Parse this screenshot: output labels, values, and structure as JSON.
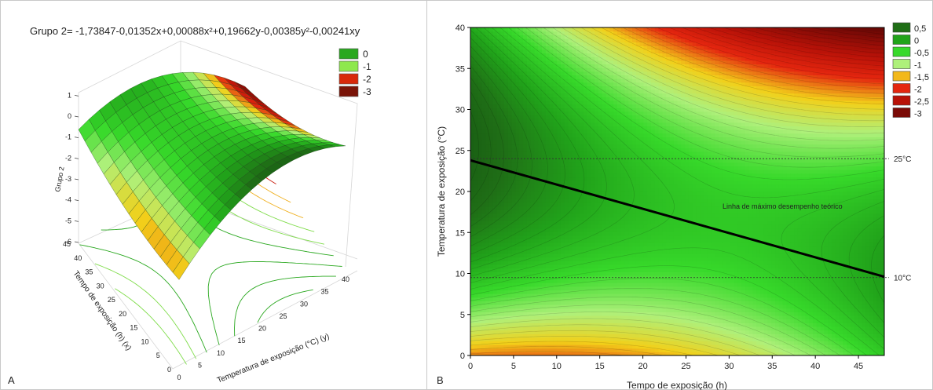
{
  "panel_a": {
    "letter": "A",
    "title": "Grupo 2= -1,73847-0,01352x+0,00088x²+0,19662y-0,00385y²-0,00241xy",
    "z_label": "Grupo 2",
    "x_label": "Tempo de exposição (h) (x)",
    "y_label": "Temperatura de exposição (°C) (y)"
  },
  "panel_b": {
    "letter": "B",
    "xlabel": "Tempo de exposição (h)",
    "ylabel": "Temperatura de exposição (°C)",
    "line_label": "Linha de máximo desempenho teórico",
    "ref_lines": [
      {
        "label": "25°C",
        "y": 24
      },
      {
        "label": "10°C",
        "y": 9.5
      }
    ]
  },
  "chart_data": [
    {
      "type": "surface",
      "equation": {
        "c0": -1.73847,
        "x": -0.01352,
        "x2": 0.00088,
        "y": 0.19662,
        "y2": -0.00385,
        "xy": -0.00241
      },
      "x_range": [
        0,
        45
      ],
      "y_range": [
        0,
        40
      ],
      "z_ticks": [
        "1",
        "0",
        "-1",
        "-2",
        "-3",
        "-4",
        "-5",
        "-6"
      ],
      "x_ticks": [
        "0",
        "5",
        "10",
        "15",
        "20",
        "25",
        "30",
        "35",
        "40",
        "45"
      ],
      "y_ticks": [
        "0",
        "5",
        "10",
        "15",
        "20",
        "25",
        "30",
        "35",
        "40"
      ],
      "legend": [
        {
          "label": "0",
          "color": "#2aa81f"
        },
        {
          "label": "-1",
          "color": "#8ee84e"
        },
        {
          "label": "-2",
          "color": "#d8280a"
        },
        {
          "label": "-3",
          "color": "#7a1408"
        }
      ]
    },
    {
      "type": "contour",
      "x_range": [
        0,
        48
      ],
      "y_range": [
        0,
        40
      ],
      "x_ticks": [
        "0",
        "5",
        "10",
        "15",
        "20",
        "25",
        "30",
        "35",
        "40",
        "45"
      ],
      "y_ticks": [
        "0",
        "5",
        "10",
        "15",
        "20",
        "25",
        "30",
        "35",
        "40"
      ],
      "max_line": {
        "x": [
          0,
          48
        ],
        "y": [
          23.8,
          9.6
        ]
      },
      "legend": [
        {
          "label": "0,5",
          "color": "#1f6e16"
        },
        {
          "label": "0",
          "color": "#21a31a"
        },
        {
          "label": "-0,5",
          "color": "#37d92a"
        },
        {
          "label": "-1",
          "color": "#aef07a"
        },
        {
          "label": "-1,5",
          "color": "#f2b81a"
        },
        {
          "label": "-2",
          "color": "#e4260f"
        },
        {
          "label": "-2,5",
          "color": "#b81208"
        },
        {
          "label": "-3",
          "color": "#7a0a06"
        }
      ]
    }
  ]
}
